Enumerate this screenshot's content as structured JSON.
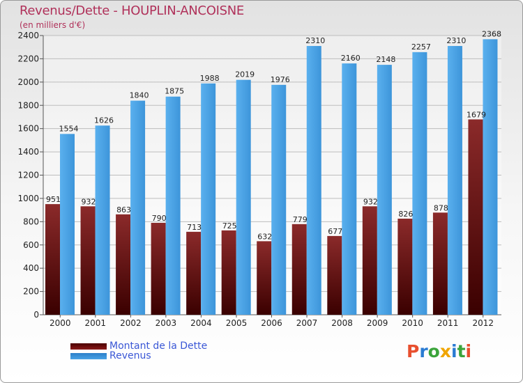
{
  "chart_title": "Revenus/Dette - HOUPLIN-ANCOISNE",
  "chart_subtitle": "(en milliers d'€)",
  "logo": {
    "letters": [
      "P",
      "r",
      "o",
      "x",
      "i",
      "t",
      "i"
    ],
    "colors": [
      "#e84f2e",
      "#2a7bd2",
      "#3ba43b",
      "#f0a500",
      "#2a7bd2",
      "#3ba43b",
      "#e84f2e"
    ]
  },
  "colors": {
    "dette": "#8a1a1a",
    "revenus": "#4aa3e6"
  },
  "chart_data": {
    "type": "bar",
    "categories": [
      "2000",
      "2001",
      "2002",
      "2003",
      "2004",
      "2005",
      "2006",
      "2007",
      "2008",
      "2009",
      "2010",
      "2011",
      "2012"
    ],
    "series": [
      {
        "name": "Montant de la Dette",
        "values": [
          951,
          932,
          863,
          790,
          713,
          725,
          632,
          779,
          677,
          932,
          826,
          878,
          1679
        ]
      },
      {
        "name": "Revenus",
        "values": [
          1554,
          1626,
          1840,
          1875,
          1988,
          2019,
          1976,
          2310,
          2160,
          2148,
          2257,
          2310,
          2368
        ]
      }
    ],
    "ylim": [
      0,
      2400
    ],
    "yticks": [
      0,
      200,
      400,
      600,
      800,
      1000,
      1200,
      1400,
      1600,
      1800,
      2000,
      2200,
      2400
    ],
    "title": "Revenus/Dette - HOUPLIN-ANCOISNE",
    "ylabel": "(en milliers d'€)",
    "legend": "bottom-left"
  }
}
